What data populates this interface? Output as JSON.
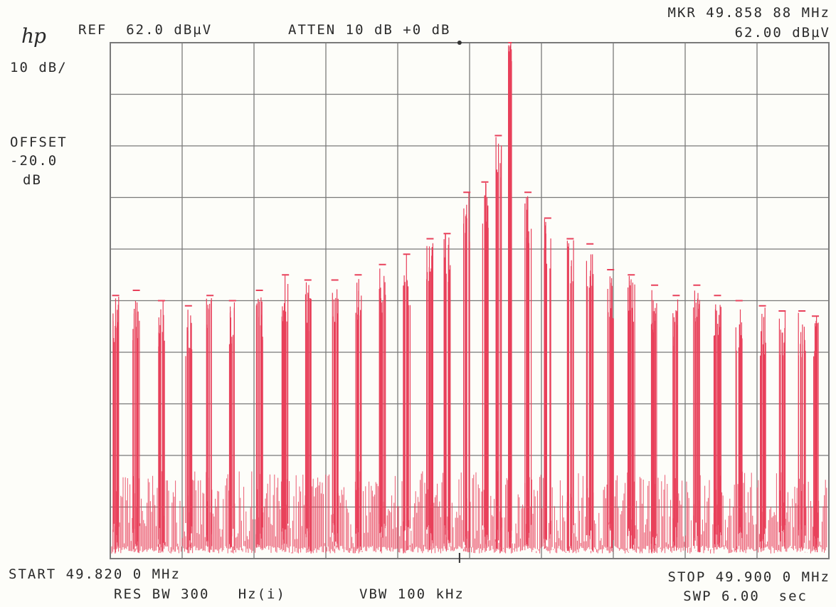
{
  "logo": "hp",
  "header": {
    "ref": "REF  62.0 dBµV",
    "atten": "ATTEN 10 dB +0 dB",
    "marker_freq": "MKR 49.858 88 MHz",
    "marker_level": "62.00 dBµV"
  },
  "left_panel": {
    "scale": "10 dB/",
    "offset_label": "OFFSET",
    "offset_value": "-20.0",
    "offset_unit": "dB"
  },
  "footer": {
    "start": "START 49.820 0 MHz",
    "stop": "STOP 49.900 0 MHz",
    "res_bw": "RES BW 300   Hz(i)",
    "vbw": "VBW 100 kHz",
    "sweep": "SWP 6.00  sec"
  },
  "colors": {
    "trace": "#e8405a",
    "grid": "#7a7a7a",
    "background": "#fdfdf9"
  },
  "chart_data": {
    "type": "line",
    "title": "",
    "xlabel": "",
    "ylabel": "",
    "x_unit": "MHz",
    "y_unit": "dBµV",
    "xlim": [
      49.82,
      49.9
    ],
    "ylim": [
      -38,
      62
    ],
    "x_divisions": 10,
    "y_divisions": 10,
    "grid": true,
    "marker": {
      "x": 49.85888,
      "y": 62.0
    },
    "noise_floor_range": [
      -37,
      -21
    ],
    "series": [
      {
        "x": [
          49.8206,
          49.8229,
          49.8257,
          49.8287,
          49.8311,
          49.8336,
          49.8366,
          49.8395,
          49.842,
          49.845,
          49.8476,
          49.8503,
          49.853,
          49.8556,
          49.8575,
          49.8597,
          49.8617,
          49.8632,
          49.8645,
          49.8665,
          49.8687,
          49.8712,
          49.8734,
          49.8757,
          49.878,
          49.8806,
          49.883,
          49.8853,
          49.8876,
          49.89,
          49.8926,
          49.8948,
          49.897,
          49.8985
        ],
        "y": [
          13,
          14,
          12,
          11,
          13,
          12,
          14,
          17,
          16,
          16,
          17,
          19,
          21,
          24,
          25,
          33,
          35,
          44,
          62,
          33,
          28,
          24,
          23,
          18,
          17,
          15,
          13,
          15,
          13,
          12,
          11,
          10,
          10,
          9
        ]
      }
    ]
  }
}
